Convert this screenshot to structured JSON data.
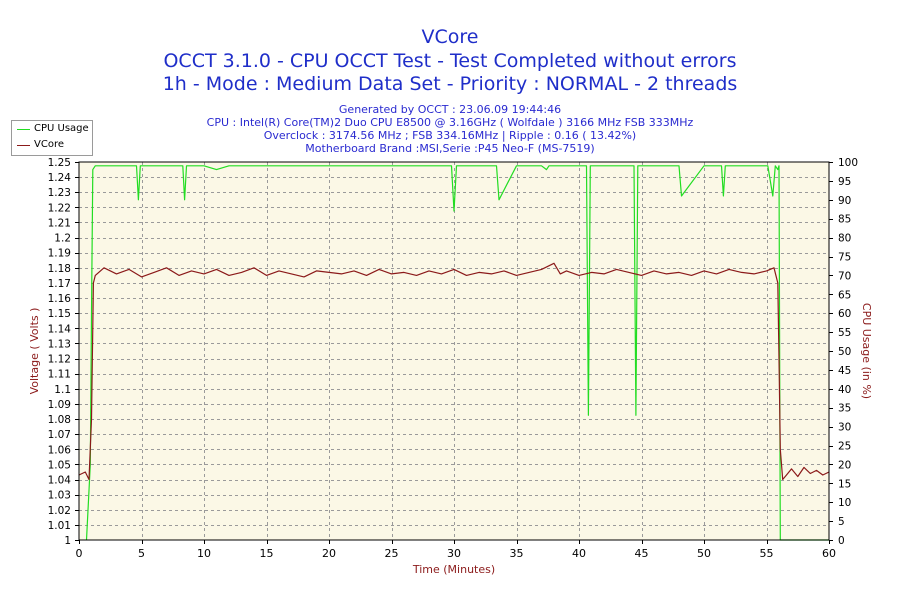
{
  "chart_data": {
    "type": "line",
    "title": "VCore",
    "subtitle_lines": [
      "OCCT 3.1.0 - CPU OCCT Test - Test Completed without errors",
      "1h - Mode : Medium Data Set - Priority : NORMAL - 2 threads"
    ],
    "info_lines": [
      "Generated by OCCT : 23.06.09 19:44:46",
      "CPU : Intel(R) Core(TM)2 Duo CPU E8500 @ 3.16GHz ( Wolfdale ) 3166 MHz FSB 333MHz",
      "Overclock : 3174.56 MHz ; FSB 334.16MHz | Ripple : 0.16 ( 13.42%)",
      "Motherboard Brand :MSI,Serie :P45 Neo-F (MS-7519)"
    ],
    "xlabel": "Time (Minutes)",
    "ylabel_left": "Voltage ( Volts )",
    "ylabel_right": "CPU Usage (in %)",
    "xlim": [
      0,
      60
    ],
    "ylim_left": [
      1,
      1.25
    ],
    "ylim_right": [
      0,
      100
    ],
    "x_ticks": [
      0,
      5,
      10,
      15,
      20,
      25,
      30,
      35,
      40,
      45,
      50,
      55,
      60
    ],
    "y_left_ticks": [
      "1",
      "1.01",
      "1.02",
      "1.03",
      "1.04",
      "1.05",
      "1.06",
      "1.07",
      "1.08",
      "1.09",
      "1.1",
      "1.11",
      "1.12",
      "1.13",
      "1.14",
      "1.15",
      "1.16",
      "1.17",
      "1.18",
      "1.19",
      "1.2",
      "1.21",
      "1.22",
      "1.23",
      "1.24",
      "1.25"
    ],
    "y_right_ticks": [
      0,
      5,
      10,
      15,
      20,
      25,
      30,
      35,
      40,
      45,
      50,
      55,
      60,
      65,
      70,
      75,
      80,
      85,
      90,
      95,
      100
    ],
    "grid": true,
    "legend_position": "top-left",
    "series": [
      {
        "name": "CPU Usage",
        "axis": "right",
        "color": "#22dd22",
        "x": [
          0.6,
          0.9,
          1.0,
          1.1,
          1.3,
          1.5,
          2.0,
          3.0,
          4.0,
          4.6,
          4.75,
          4.9,
          6.0,
          7.0,
          8.0,
          8.3,
          8.45,
          8.6,
          10.0,
          11.0,
          12.0,
          15.0,
          20.0,
          25.0,
          29.8,
          30.0,
          30.2,
          33.0,
          33.4,
          33.6,
          35.0,
          37.0,
          37.4,
          37.6,
          40.0,
          40.6,
          40.75,
          40.9,
          42.0,
          44.0,
          44.4,
          44.55,
          44.7,
          45.5,
          47.0,
          48.0,
          48.2,
          50.0,
          51.4,
          51.55,
          51.7,
          54.0,
          55.1,
          55.3,
          55.5,
          55.7,
          55.9,
          56.0,
          56.1,
          57.0,
          60.0
        ],
        "y": [
          0,
          20,
          60,
          98,
          99,
          99,
          99,
          99,
          99,
          99,
          90,
          99,
          99,
          99,
          99,
          99,
          90,
          99,
          99,
          98,
          99,
          99,
          99,
          99,
          99,
          87,
          99,
          99,
          99,
          90,
          99,
          99,
          98,
          99,
          99,
          99,
          33,
          99,
          99,
          99,
          99,
          33,
          99,
          99,
          99,
          99,
          91,
          99,
          99,
          91,
          99,
          99,
          99,
          95,
          91,
          99,
          98,
          99,
          0,
          0,
          0
        ]
      },
      {
        "name": "VCore",
        "axis": "left",
        "color": "#8b1a1a",
        "x": [
          0,
          0.5,
          0.8,
          1.0,
          1.15,
          1.3,
          2.0,
          3.0,
          4.0,
          5.0,
          6.0,
          7.0,
          8.0,
          9.0,
          10.0,
          11.0,
          12.0,
          13.0,
          14.0,
          15.0,
          16.0,
          17.0,
          18.0,
          19.0,
          20.0,
          21.0,
          22.0,
          23.0,
          24.0,
          25.0,
          26.0,
          27.0,
          28.0,
          29.0,
          30.0,
          31.0,
          32.0,
          33.0,
          34.0,
          35.0,
          36.0,
          37.0,
          38.0,
          38.5,
          39.0,
          40.0,
          41.0,
          42.0,
          43.0,
          44.0,
          45.0,
          46.0,
          47.0,
          48.0,
          49.0,
          50.0,
          51.0,
          52.0,
          53.0,
          54.0,
          55.0,
          55.6,
          55.9,
          56.0,
          56.1,
          56.3,
          56.6,
          57.0,
          57.5,
          58.0,
          58.5,
          59.0,
          59.5,
          60.0
        ],
        "y": [
          1.043,
          1.045,
          1.04,
          1.08,
          1.17,
          1.175,
          1.18,
          1.176,
          1.179,
          1.174,
          1.177,
          1.18,
          1.175,
          1.178,
          1.176,
          1.179,
          1.175,
          1.177,
          1.18,
          1.175,
          1.178,
          1.176,
          1.174,
          1.178,
          1.177,
          1.176,
          1.178,
          1.175,
          1.179,
          1.176,
          1.177,
          1.175,
          1.178,
          1.176,
          1.179,
          1.175,
          1.177,
          1.176,
          1.178,
          1.175,
          1.177,
          1.179,
          1.183,
          1.176,
          1.178,
          1.175,
          1.177,
          1.176,
          1.179,
          1.177,
          1.175,
          1.178,
          1.176,
          1.177,
          1.175,
          1.178,
          1.176,
          1.179,
          1.177,
          1.176,
          1.178,
          1.18,
          1.17,
          1.12,
          1.06,
          1.04,
          1.043,
          1.047,
          1.042,
          1.048,
          1.044,
          1.046,
          1.043,
          1.045
        ]
      }
    ]
  }
}
